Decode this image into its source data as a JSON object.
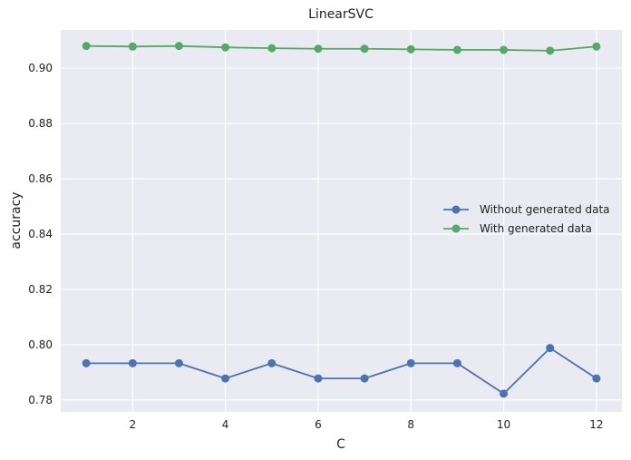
{
  "chart_data": {
    "type": "line",
    "title": "LinearSVC",
    "xlabel": "C",
    "ylabel": "accuracy",
    "x": [
      1,
      2,
      3,
      4,
      5,
      6,
      7,
      8,
      9,
      10,
      11,
      12
    ],
    "xlim": [
      0.45,
      12.55
    ],
    "ylim": [
      0.7757,
      0.9138
    ],
    "xticks": [
      2,
      4,
      6,
      8,
      10,
      12
    ],
    "xtick_labels": [
      "2",
      "4",
      "6",
      "8",
      "10",
      "12"
    ],
    "yticks": [
      0.78,
      0.8,
      0.82,
      0.84,
      0.86,
      0.88,
      0.9
    ],
    "ytick_labels": [
      "0.78",
      "0.80",
      "0.82",
      "0.84",
      "0.86",
      "0.88",
      "0.90"
    ],
    "grid": true,
    "legend_position": "center-right",
    "series": [
      {
        "name": "Without generated data",
        "color": "#4c72b0",
        "values": [
          0.7933,
          0.7933,
          0.7933,
          0.7878,
          0.7933,
          0.7878,
          0.7878,
          0.7933,
          0.7933,
          0.7823,
          0.7988,
          0.7878
        ]
      },
      {
        "name": "With generated data",
        "color": "#55a868",
        "values": [
          0.908,
          0.9078,
          0.908,
          0.9075,
          0.9072,
          0.907,
          0.907,
          0.9068,
          0.9066,
          0.9066,
          0.9063,
          0.9078
        ]
      }
    ]
  }
}
